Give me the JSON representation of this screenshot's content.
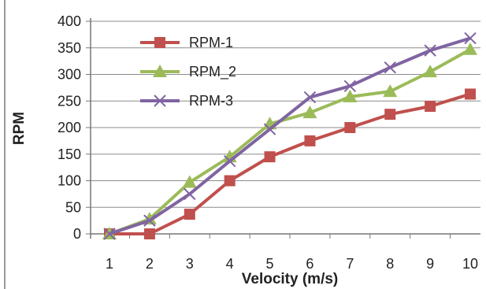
{
  "chart_data": {
    "type": "line",
    "title": "",
    "xlabel": "Velocity (m/s)",
    "ylabel": "RPM",
    "x": [
      1,
      2,
      3,
      4,
      5,
      6,
      7,
      8,
      9,
      10
    ],
    "xlim": [
      1,
      10
    ],
    "ylim": [
      0,
      400
    ],
    "yticks": [
      0,
      50,
      100,
      150,
      200,
      250,
      300,
      350,
      400
    ],
    "grid": "horizontal",
    "legend_position": "top-left",
    "series": [
      {
        "name": "RPM-1",
        "color": "#c0504d",
        "marker": "square",
        "values": [
          0,
          0,
          37,
          100,
          145,
          175,
          200,
          225,
          240,
          263
        ]
      },
      {
        "name": "RPM_2",
        "color": "#9bbb59",
        "marker": "triangle",
        "values": [
          0,
          28,
          97,
          145,
          207,
          228,
          258,
          268,
          305,
          347
        ]
      },
      {
        "name": "RPM-3",
        "color": "#8064a2",
        "marker": "x",
        "values": [
          0,
          25,
          75,
          137,
          197,
          257,
          278,
          313,
          345,
          368
        ]
      }
    ]
  }
}
